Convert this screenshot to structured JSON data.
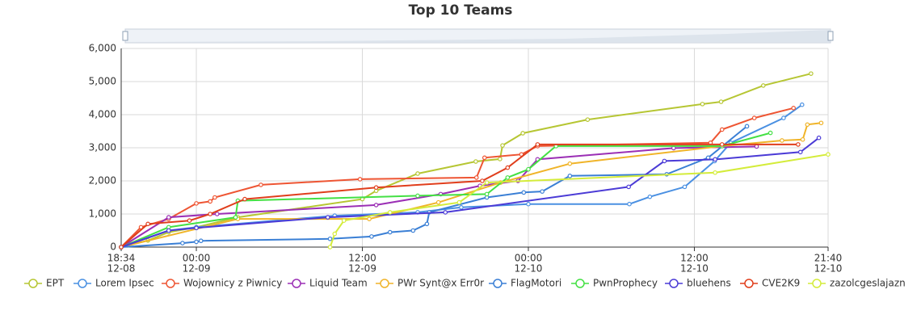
{
  "chart_data": {
    "type": "line",
    "title": "Top 10 Teams",
    "grid": true,
    "legend": "bottom",
    "xlim": [
      "12-08 18:34",
      "12-10 21:40"
    ],
    "xticks": [
      {
        "value": "12-08 18:34",
        "label": [
          "18:34",
          "12-08"
        ]
      },
      {
        "value": "12-09 00:00",
        "label": [
          "00:00",
          "12-09"
        ]
      },
      {
        "value": "12-09 12:00",
        "label": [
          "12:00",
          "12-09"
        ]
      },
      {
        "value": "12-10 00:00",
        "label": [
          "00:00",
          "12-10"
        ]
      },
      {
        "value": "12-10 12:00",
        "label": [
          "12:00",
          "12-10"
        ]
      },
      {
        "value": "12-10 21:40",
        "label": [
          "21:40",
          "12-10"
        ]
      }
    ],
    "ylim": [
      0,
      6000
    ],
    "yticks": [
      0,
      {
        "value": 1000,
        "label": "1,000"
      },
      {
        "value": 2000,
        "label": "2,000"
      },
      {
        "value": 3000,
        "label": "3,000"
      },
      {
        "value": 4000,
        "label": "4,000"
      },
      {
        "value": 5000,
        "label": "5,000"
      },
      {
        "value": 6000,
        "label": "6,000"
      }
    ],
    "series": [
      {
        "name": "EPT",
        "color": "#b6c633",
        "x": [
          "12-08 18:34",
          "12-08 19:00",
          "12-08 20:30",
          "12-08 22:00",
          "12-09 00:00",
          "12-09 03:00",
          "12-09 12:00",
          "12-09 13:00",
          "12-09 16:00",
          "12-09 20:12",
          "12-09 21:57",
          "12-09 22:08",
          "12-09 23:36",
          "12-10 04:17",
          "12-10 12:35",
          "12-10 13:56",
          "12-10 16:59",
          "12-10 20:26"
        ],
        "values": [
          0,
          50,
          200,
          450,
          600,
          900,
          1450,
          1700,
          2220,
          2585,
          2660,
          3070,
          3440,
          3850,
          4320,
          4390,
          4880,
          5240
        ]
      },
      {
        "name": "Lorem Ipsec",
        "color": "#4a90e2",
        "x": [
          "12-08 18:34",
          "12-08 22:00",
          "12-09 00:00",
          "12-09 10:00",
          "12-09 16:00",
          "12-09 19:09",
          "12-10 00:00",
          "12-10 07:18",
          "12-10 08:47",
          "12-10 11:18",
          "12-10 13:28",
          "12-10 14:38",
          "12-10 18:27",
          "12-10 19:47"
        ],
        "values": [
          0,
          500,
          600,
          950,
          1050,
          1200,
          1300,
          1300,
          1520,
          1820,
          2600,
          3150,
          3900,
          4300
        ]
      },
      {
        "name": "Wojownicy z Piwnicy",
        "color": "#ee5533",
        "x": [
          "12-08 18:34",
          "12-08 20:00",
          "12-08 22:00",
          "12-09 00:00",
          "12-09 01:00",
          "12-09 01:20",
          "12-09 04:40",
          "12-09 11:50",
          "12-09 20:15",
          "12-09 20:50",
          "12-09 23:30",
          "12-10 00:40",
          "12-10 13:10",
          "12-10 14:00",
          "12-10 16:20",
          "12-10 19:10"
        ],
        "values": [
          0,
          600,
          850,
          1320,
          1380,
          1500,
          1880,
          2050,
          2100,
          2700,
          2800,
          3050,
          3150,
          3550,
          3900,
          4200
        ]
      },
      {
        "name": "Liquid Team",
        "color": "#9b2fb5",
        "x": [
          "12-08 18:34",
          "12-08 22:00",
          "12-09 01:30",
          "12-09 13:00",
          "12-09 17:40",
          "12-09 20:30",
          "12-09 23:15",
          "12-10 00:40",
          "12-10 10:30",
          "12-10 16:30"
        ],
        "values": [
          0,
          900,
          1000,
          1270,
          1600,
          1850,
          2000,
          2650,
          2990,
          3040
        ]
      },
      {
        "name": "PWr Synt@x Err0r",
        "color": "#f0b429",
        "x": [
          "12-08 18:34",
          "12-09 03:00",
          "12-09 12:30",
          "12-09 17:30",
          "12-09 22:00",
          "12-10 03:00",
          "12-10 14:00",
          "12-10 18:20",
          "12-10 19:50",
          "12-10 20:10",
          "12-10 21:10"
        ],
        "values": [
          0,
          850,
          850,
          1350,
          1950,
          2520,
          3050,
          3220,
          3250,
          3700,
          3750
        ]
      },
      {
        "name": "FlagMotori",
        "color": "#3a7fd5",
        "x": [
          "12-08 18:34",
          "12-08 23:00",
          "12-09 00:00",
          "12-09 00:20",
          "12-09 09:40",
          "12-09 12:40",
          "12-09 14:00",
          "12-09 15:40",
          "12-09 16:40",
          "12-09 16:50",
          "12-09 21:00",
          "12-09 23:40",
          "12-10 01:00",
          "12-10 03:00",
          "12-10 10:00",
          "12-10 13:00",
          "12-10 15:48"
        ],
        "values": [
          0,
          120,
          160,
          190,
          250,
          320,
          450,
          500,
          700,
          1050,
          1500,
          1650,
          1680,
          2150,
          2200,
          2700,
          3650
        ]
      },
      {
        "name": "PwnProphecy",
        "color": "#44e044",
        "x": [
          "12-08 18:34",
          "12-08 22:00",
          "12-09 02:50",
          "12-09 03:00",
          "12-09 16:00",
          "12-09 21:00",
          "12-09 22:30",
          "12-10 00:00",
          "12-10 02:00",
          "12-10 14:00",
          "12-10 17:30"
        ],
        "values": [
          0,
          600,
          900,
          1400,
          1550,
          1600,
          2100,
          2350,
          3050,
          3050,
          3450
        ]
      },
      {
        "name": "bluehens",
        "color": "#4b3bd6",
        "x": [
          "12-08 18:34",
          "12-08 22:00",
          "12-09 00:00",
          "12-09 09:30",
          "12-09 18:00",
          "12-10 07:15",
          "12-10 09:50",
          "12-10 13:30",
          "12-10 19:40",
          "12-10 21:00"
        ],
        "values": [
          0,
          500,
          580,
          900,
          1050,
          1820,
          2600,
          2650,
          2870,
          3300
        ]
      },
      {
        "name": "CVE2K9",
        "color": "#e03e1c",
        "x": [
          "12-08 18:34",
          "12-08 20:30",
          "12-08 23:30",
          "12-09 01:00",
          "12-09 03:30",
          "12-09 13:00",
          "12-09 20:40",
          "12-09 22:30",
          "12-10 00:40",
          "12-10 14:00",
          "12-10 19:30"
        ],
        "values": [
          0,
          700,
          800,
          1000,
          1450,
          1800,
          2000,
          2400,
          3100,
          3100,
          3100
        ]
      },
      {
        "name": "zazolcgeslajazn",
        "color": "#d4ec3a",
        "x": [
          "12-09 09:40",
          "12-09 10:00",
          "12-09 10:40",
          "12-09 14:00",
          "12-09 19:00",
          "12-09 21:00",
          "12-10 13:30",
          "12-10 21:40"
        ],
        "values": [
          0,
          400,
          800,
          1050,
          1350,
          1950,
          2250,
          2800
        ]
      }
    ]
  }
}
